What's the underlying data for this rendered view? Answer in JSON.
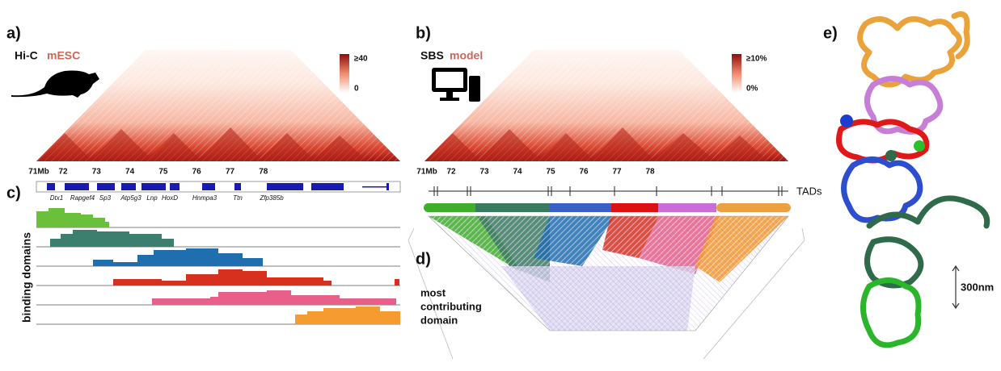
{
  "panel_a": {
    "label": "a)",
    "title_1": "Hi-C",
    "title_2": "mESC",
    "scale_max": "≥40",
    "scale_min": "0",
    "axis_ticks": [
      "71Mb",
      "72",
      "73",
      "74",
      "75",
      "76",
      "77",
      "78"
    ]
  },
  "panel_b": {
    "label": "b)",
    "title_1": "SBS",
    "title_2": "model",
    "scale_max": "≥10%",
    "scale_min": "0%",
    "axis_ticks": [
      "71Mb",
      "72",
      "73",
      "74",
      "75",
      "76",
      "77",
      "78"
    ],
    "tads_label": "TADs"
  },
  "panel_c": {
    "label": "c)",
    "y_label": "binding domains",
    "genes": [
      "Dtx1",
      "Rapgef4",
      "Sp3",
      "Atp5g3",
      "Lnp",
      "HoxD",
      "Hnmpa3",
      "Ttn",
      "Zfp385b"
    ]
  },
  "panel_d": {
    "label": "d)",
    "caption_lines": [
      "most",
      "contributing",
      "domain"
    ]
  },
  "panel_e": {
    "label": "e)",
    "scale_bar": "300nm"
  }
}
